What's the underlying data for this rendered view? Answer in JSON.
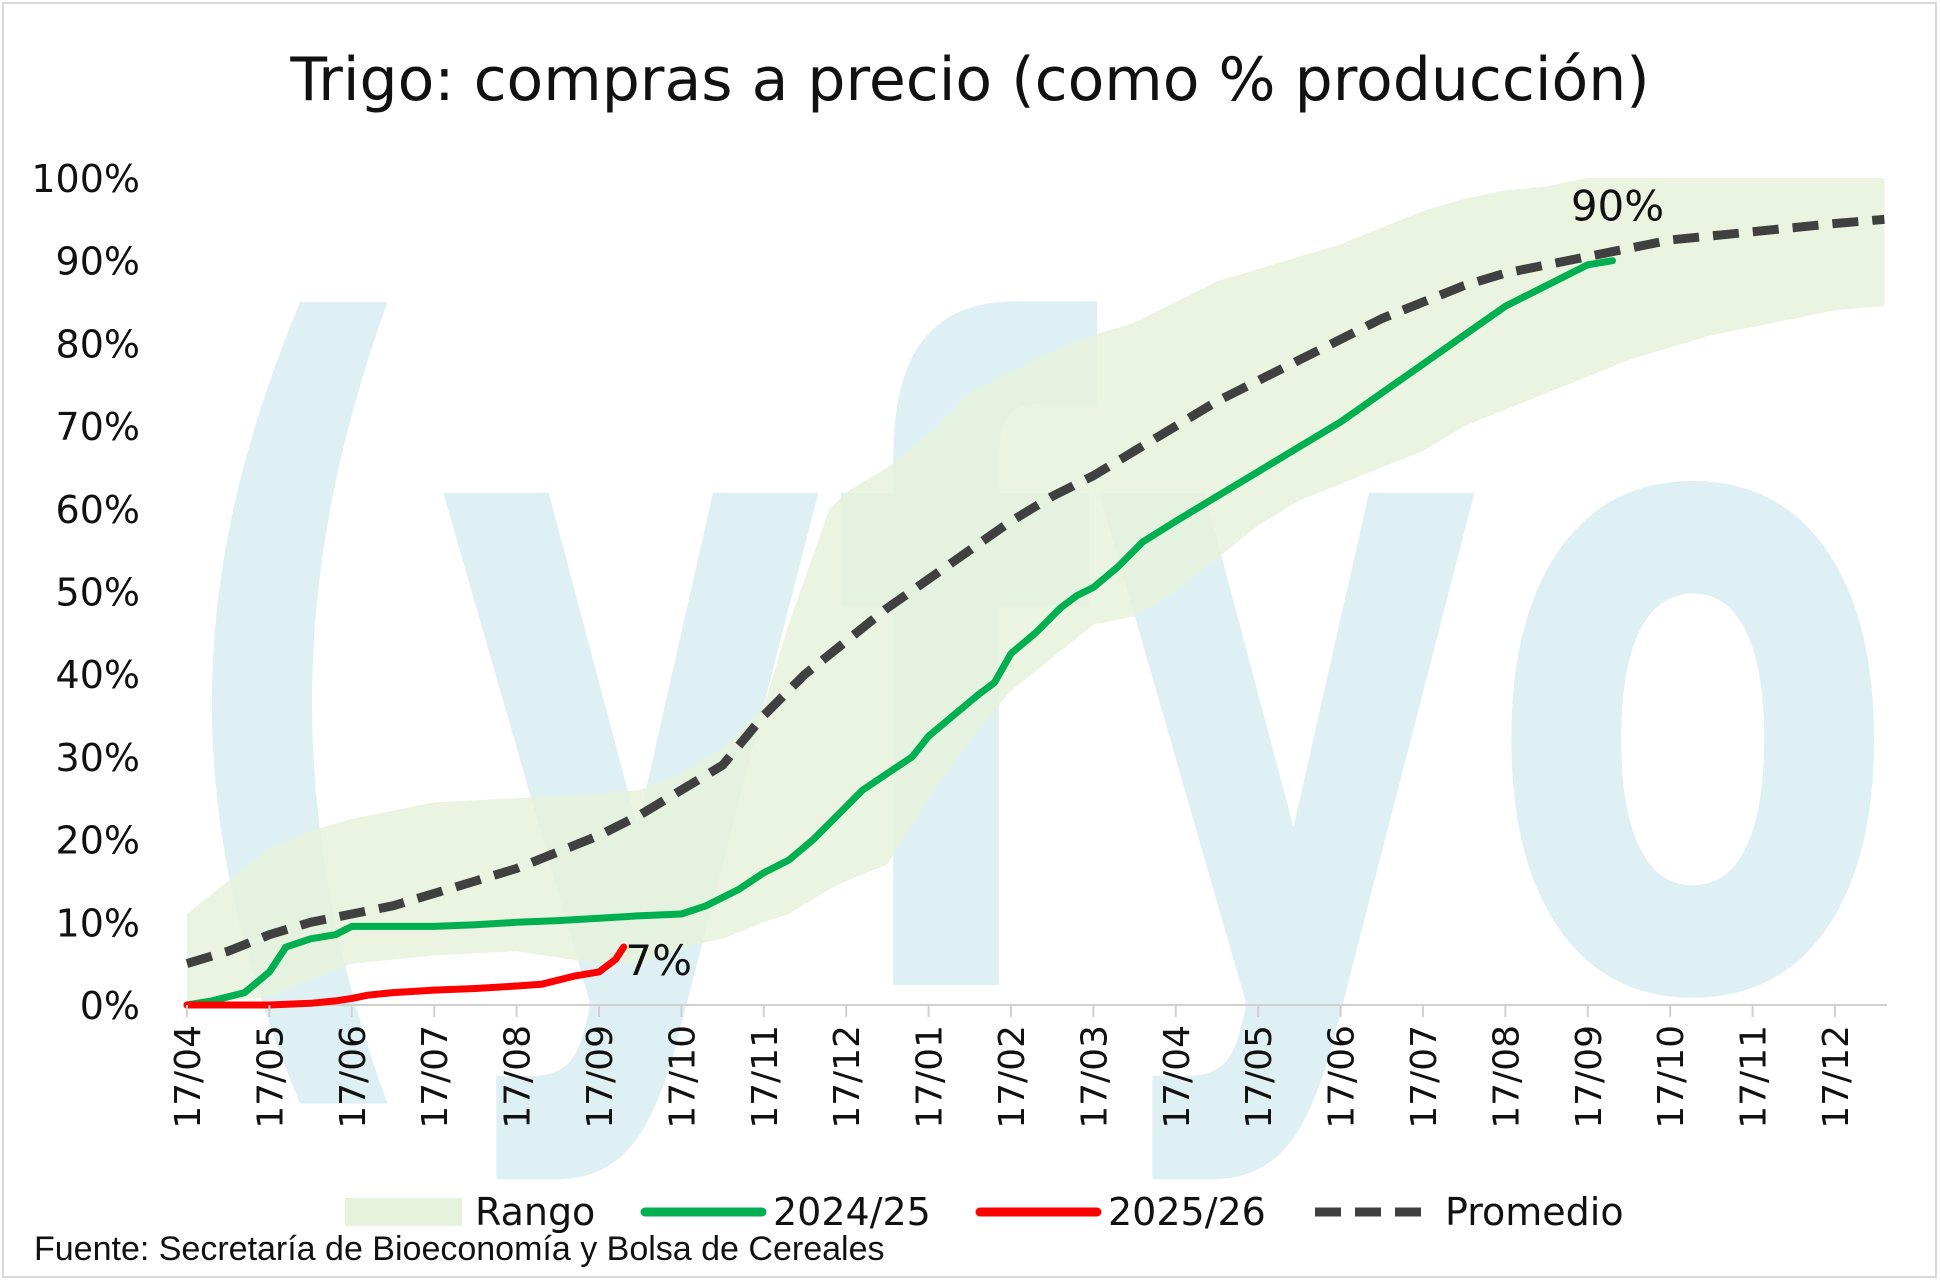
{
  "colors": {
    "range_fill": "#e6f2dc",
    "s2425": "#00b050",
    "s2526": "#ff0000",
    "avg": "#404040",
    "watermark": "#dff0f4",
    "axis": "#d0d0d0"
  },
  "watermark": {
    "text": "(yfyo"
  },
  "chart_data": {
    "type": "line",
    "title": "Trigo: compras a precio (como % producción)",
    "categories": [
      "17/04",
      "17/05",
      "17/06",
      "17/07",
      "17/08",
      "17/09",
      "17/10",
      "17/11",
      "17/12",
      "17/01",
      "17/02",
      "17/03",
      "17/04",
      "17/05",
      "17/06",
      "17/07",
      "17/08",
      "17/09",
      "17/10",
      "17/11",
      "17/12"
    ],
    "ylim": [
      0,
      100
    ],
    "yticks": [
      "0%",
      "10%",
      "20%",
      "30%",
      "40%",
      "50%",
      "60%",
      "70%",
      "80%",
      "90%",
      "100%"
    ],
    "x_unit": "months since 17/04",
    "xlim": [
      0,
      20.6
    ],
    "series": [
      {
        "name": "Rango",
        "type": "range",
        "x": [
          0,
          1,
          1.5,
          2,
          3,
          4,
          5,
          5.5,
          6,
          6.5,
          7,
          7.3,
          7.8,
          8,
          8.5,
          9,
          9.5,
          10,
          10.5,
          11,
          11.5,
          12,
          12.5,
          13,
          13.5,
          14,
          14.5,
          15,
          15.5,
          16,
          16.5,
          17,
          17.5,
          18,
          18.5,
          19,
          19.5,
          20,
          20.6
        ],
        "low": [
          0,
          1,
          3,
          5,
          6,
          6.5,
          5,
          5,
          7,
          8,
          10,
          11,
          14,
          15,
          17,
          25,
          32,
          38,
          42,
          46,
          47,
          50,
          54,
          58,
          61,
          63,
          65,
          67,
          70,
          72,
          74,
          76,
          78,
          79.5,
          81,
          82,
          83,
          84,
          84.5
        ],
        "high": [
          11,
          19,
          21,
          22.5,
          24.5,
          25,
          25.5,
          26,
          28,
          31,
          36,
          46,
          60,
          62,
          65,
          69,
          74,
          76.5,
          79,
          81,
          82.5,
          85,
          87.5,
          89,
          90.5,
          92,
          94,
          96,
          97.5,
          98.5,
          99,
          100,
          100,
          100,
          100,
          100,
          100,
          100,
          100
        ]
      },
      {
        "name": "2024/25",
        "type": "line",
        "x": [
          0,
          0.3,
          0.7,
          1,
          1.2,
          1.5,
          1.8,
          2,
          2.5,
          3,
          3.5,
          4,
          4.5,
          5,
          5.5,
          6,
          6.3,
          6.7,
          7,
          7.3,
          7.6,
          7.9,
          8.2,
          8.5,
          8.8,
          9,
          9.3,
          9.6,
          9.8,
          10,
          10.3,
          10.6,
          10.8,
          11,
          11.3,
          11.6,
          12,
          12.5,
          13,
          13.5,
          14,
          14.5,
          15,
          15.5,
          16,
          16.5,
          17,
          17.3
        ],
        "values": [
          0,
          0.5,
          1.5,
          4,
          7,
          8,
          8.5,
          9.5,
          9.5,
          9.5,
          9.7,
          10,
          10.2,
          10.5,
          10.8,
          11,
          12,
          14,
          16,
          17.5,
          20,
          23,
          26,
          28,
          30,
          32.5,
          35,
          37.5,
          39,
          42.5,
          45,
          48,
          49.5,
          50.5,
          53,
          56,
          58.5,
          61.5,
          64.5,
          67.5,
          70.5,
          74,
          77.5,
          81,
          84.5,
          87,
          89.5,
          90
        ]
      },
      {
        "name": "2025/26",
        "type": "line",
        "x": [
          0,
          0.5,
          1,
          1.5,
          1.8,
          2,
          2.2,
          2.5,
          3,
          3.5,
          4,
          4.3,
          4.7,
          5,
          5.2,
          5.3
        ],
        "values": [
          0,
          0,
          0,
          0.2,
          0.5,
          0.8,
          1.2,
          1.5,
          1.8,
          2,
          2.3,
          2.5,
          3.5,
          4,
          5.5,
          7
        ]
      },
      {
        "name": "Promedio",
        "type": "dashed",
        "x": [
          0,
          0.5,
          1,
          1.5,
          2,
          2.5,
          3,
          3.5,
          4,
          4.5,
          5,
          5.5,
          6,
          6.5,
          7,
          7.5,
          8,
          8.5,
          9,
          9.5,
          10,
          10.5,
          11,
          11.5,
          12,
          12.5,
          13,
          13.5,
          14,
          14.5,
          15,
          15.5,
          16,
          16.5,
          17,
          17.5,
          18,
          18.5,
          19,
          19.5,
          20,
          20.6
        ],
        "values": [
          5,
          6.5,
          8.5,
          10,
          11,
          12,
          13.5,
          15,
          16.5,
          18.5,
          20.5,
          23,
          26,
          29,
          35,
          40,
          44,
          48,
          51.5,
          55,
          58.5,
          61.5,
          64,
          67,
          70,
          73,
          75.5,
          78,
          80.5,
          83,
          85,
          87,
          88.5,
          89.5,
          90.5,
          91.5,
          92.5,
          93,
          93.5,
          94,
          94.5,
          95
        ]
      }
    ],
    "annotations": [
      {
        "text": "90%",
        "series": "2024/25"
      },
      {
        "text": "7%",
        "series": "2025/26"
      }
    ],
    "legend": {
      "position": "bottom",
      "entries": [
        "Rango",
        "2024/25",
        "2025/26",
        "Promedio"
      ]
    },
    "grid": false,
    "source": "Fuente: Secretaría de Bioeconomía y Bolsa de Cereales"
  }
}
